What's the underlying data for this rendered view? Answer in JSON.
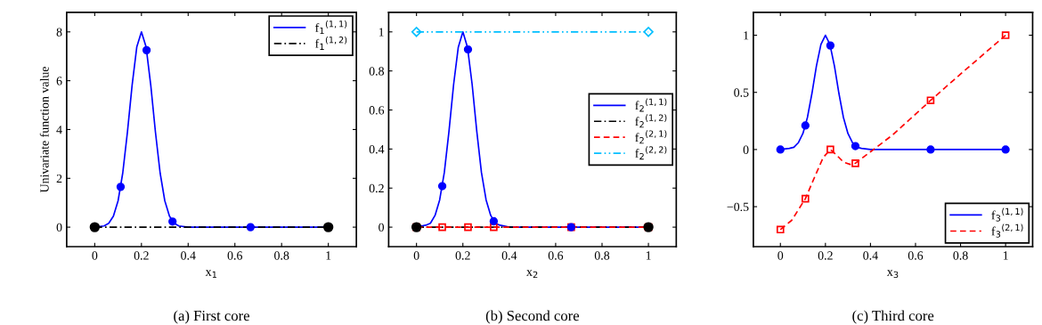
{
  "chart_data": [
    {
      "type": "line",
      "xlabel": "x$_{1}$",
      "ylabel": "Univariate function value",
      "xlim": [
        -0.12,
        1.12
      ],
      "ylim": [
        -0.8,
        8.8
      ],
      "xticks": [
        0,
        0.2,
        0.4,
        0.6,
        0.8,
        1
      ],
      "yticks": [
        0,
        2,
        4,
        6,
        8
      ],
      "grid": false,
      "legend": "top right",
      "annotations": [
        "(a) First core"
      ],
      "series": [
        {
          "name": "f$_{1}$$^{(1,1)}$",
          "type": "line",
          "color": "#0000ff",
          "line_style": "solid",
          "marker": "none",
          "x": [
            0,
            0.04,
            0.06,
            0.08,
            0.1,
            0.12,
            0.14,
            0.16,
            0.18,
            0.2,
            0.22,
            0.24,
            0.26,
            0.28,
            0.3,
            0.32,
            0.34,
            0.36,
            0.4,
            1
          ],
          "values": [
            0,
            0.05,
            0.16,
            0.45,
            1.08,
            2.22,
            3.89,
            5.81,
            7.38,
            8,
            7.38,
            5.81,
            3.89,
            2.22,
            1.08,
            0.45,
            0.16,
            0.05,
            0,
            0
          ]
        },
        {
          "name": "f$_{1}$$^{(1,2)}$",
          "type": "line",
          "color": "#000000",
          "line_style": "dashdot",
          "marker": "none",
          "x": [
            0,
            1
          ],
          "values": [
            0,
            0
          ]
        },
        {
          "type": "scatter",
          "color": "#0000ff",
          "marker": "circle",
          "x": [
            0.111,
            0.222,
            0.333,
            0.667
          ],
          "values": [
            1.65,
            7.25,
            0.23,
            0
          ]
        },
        {
          "type": "scatter",
          "color": "#000000",
          "marker": "circle",
          "x": [
            0,
            1
          ],
          "values": [
            0,
            0
          ]
        }
      ]
    },
    {
      "type": "line",
      "xlabel": "x$_{2}$",
      "xlim": [
        -0.12,
        1.12
      ],
      "ylim": [
        -0.1,
        1.1
      ],
      "xticks": [
        0,
        0.2,
        0.4,
        0.6,
        0.8,
        1
      ],
      "yticks": [
        0,
        0.2,
        0.4,
        0.6,
        0.8,
        1
      ],
      "grid": false,
      "legend": "center right",
      "annotations": [
        "(b) Second core"
      ],
      "series": [
        {
          "name": "f$_{2}$$^{(1,1)}$",
          "type": "line",
          "color": "#0000ff",
          "line_style": "solid",
          "marker": "none",
          "x": [
            0,
            0.04,
            0.06,
            0.08,
            0.1,
            0.12,
            0.14,
            0.16,
            0.18,
            0.2,
            0.22,
            0.24,
            0.26,
            0.28,
            0.3,
            0.32,
            0.34,
            0.36,
            0.4,
            1
          ],
          "values": [
            0,
            0.01,
            0.02,
            0.06,
            0.14,
            0.28,
            0.49,
            0.73,
            0.92,
            1,
            0.92,
            0.73,
            0.49,
            0.28,
            0.14,
            0.06,
            0.02,
            0.01,
            0,
            0
          ]
        },
        {
          "name": "f$_{2}$$^{(1,2)}$",
          "type": "line",
          "color": "#000000",
          "line_style": "dashdot",
          "marker": "none",
          "x": [
            0,
            1
          ],
          "values": [
            0,
            0
          ]
        },
        {
          "name": "f$_{2}$$^{(2,1)}$",
          "type": "line",
          "color": "#ff0000",
          "line_style": "dashed",
          "marker": "none",
          "x": [
            0,
            1
          ],
          "values": [
            0,
            0
          ]
        },
        {
          "name": "f$_{2}$$^{(2,2)}$",
          "type": "line",
          "color": "#00bfff",
          "line_style": "dashdotdot",
          "marker": "none",
          "x": [
            0,
            1
          ],
          "values": [
            1,
            1
          ]
        },
        {
          "type": "scatter",
          "color": "#ff0000",
          "marker": "square",
          "x": [
            0,
            0.111,
            0.222,
            0.333,
            0.667,
            1
          ],
          "values": [
            0,
            0,
            0,
            0,
            0,
            0
          ]
        },
        {
          "type": "scatter",
          "color": "#000000",
          "marker": "circle",
          "x": [
            0,
            1
          ],
          "values": [
            0,
            0
          ]
        },
        {
          "type": "scatter",
          "color": "#0000ff",
          "marker": "circle",
          "x": [
            0.111,
            0.222,
            0.333,
            0.667
          ],
          "values": [
            0.21,
            0.91,
            0.03,
            0
          ]
        },
        {
          "type": "scatter",
          "color": "#00bfff",
          "marker": "diamond",
          "x": [
            0,
            1
          ],
          "values": [
            1,
            1
          ]
        }
      ]
    },
    {
      "type": "line",
      "xlabel": "x$_{3}$",
      "xlim": [
        -0.12,
        1.12
      ],
      "ylim": [
        -0.85,
        1.2
      ],
      "xticks": [
        0,
        0.2,
        0.4,
        0.6,
        0.8,
        1
      ],
      "yticks": [
        {
          "value": -0.5,
          "label": "−0.5"
        },
        0,
        0.5,
        1
      ],
      "grid": false,
      "legend": "lower right",
      "annotations": [
        "(c) Third core"
      ],
      "series": [
        {
          "name": "f$_{3}$$^{(1,1)}$",
          "type": "line",
          "color": "#0000ff",
          "line_style": "solid",
          "marker": "none",
          "x": [
            0,
            0.04,
            0.06,
            0.08,
            0.1,
            0.12,
            0.14,
            0.16,
            0.18,
            0.2,
            0.22,
            0.24,
            0.26,
            0.28,
            0.3,
            0.32,
            0.34,
            0.36,
            0.4,
            1
          ],
          "values": [
            0,
            0.01,
            0.02,
            0.06,
            0.14,
            0.28,
            0.49,
            0.73,
            0.92,
            1,
            0.92,
            0.73,
            0.49,
            0.28,
            0.14,
            0.06,
            0.02,
            0.01,
            0,
            0
          ]
        },
        {
          "name": "f$_{3}$$^{(2,1)}$",
          "type": "line",
          "color": "#ff0000",
          "line_style": "dashed",
          "marker": "none",
          "x": [
            0,
            0.05,
            0.111,
            0.15,
            0.19,
            0.222,
            0.25,
            0.28,
            0.31,
            0.333,
            0.4,
            0.5,
            0.667,
            0.8,
            1
          ],
          "values": [
            -0.7,
            -0.62,
            -0.43,
            -0.25,
            -0.07,
            0,
            -0.05,
            -0.11,
            -0.13,
            -0.12,
            -0.02,
            0.13,
            0.43,
            0.66,
            1
          ]
        },
        {
          "type": "scatter",
          "color": "#0000ff",
          "marker": "circle",
          "x": [
            0,
            0.111,
            0.222,
            0.333,
            0.667,
            1
          ],
          "values": [
            0,
            0.21,
            0.91,
            0.03,
            0,
            0
          ]
        },
        {
          "type": "scatter",
          "color": "#ff0000",
          "marker": "square",
          "x": [
            0,
            0.111,
            0.222,
            0.333,
            0.667,
            1
          ],
          "values": [
            -0.7,
            -0.43,
            0,
            -0.12,
            0.43,
            1
          ]
        }
      ]
    }
  ]
}
